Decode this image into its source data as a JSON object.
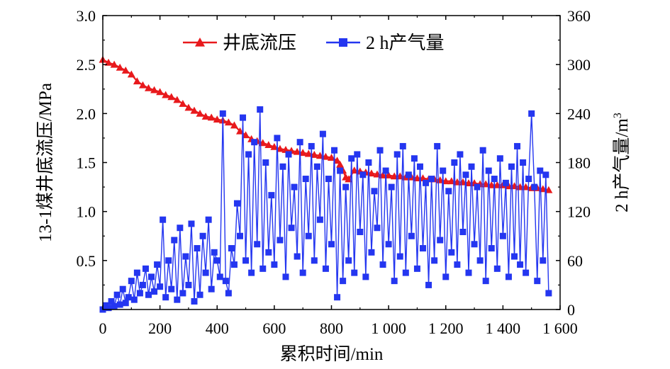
{
  "chart_data": {
    "type": "line",
    "xlabel": "累积时间/min",
    "ylabel_left": "13-1煤井底流压/MPa",
    "ylabel_right_prefix": "2 h产气量/m",
    "ylabel_right_sup": "3",
    "xlim": [
      0,
      1600
    ],
    "ylim_left": [
      0,
      3.0
    ],
    "ylim_right": [
      0,
      360
    ],
    "x_ticks": [
      0,
      200,
      400,
      600,
      800,
      1000,
      1200,
      1400,
      1600
    ],
    "x_tick_labels": [
      "0",
      "200",
      "400",
      "600",
      "800",
      "1 000",
      "1 200",
      "1 400",
      "1 600"
    ],
    "y_left_ticks": [
      0.5,
      1.0,
      1.5,
      2.0,
      2.5,
      3.0
    ],
    "y_left_tick_labels": [
      "0.5",
      "1.0",
      "1.5",
      "2.0",
      "2.5",
      "3.0"
    ],
    "y_right_ticks": [
      0,
      60,
      120,
      180,
      240,
      300,
      360
    ],
    "y_right_tick_labels": [
      "0",
      "60",
      "120",
      "180",
      "240",
      "300",
      "360"
    ],
    "legend": {
      "position": "top-center"
    },
    "series": [
      {
        "name": "井底流压",
        "axis": "left",
        "color": "#e8191c",
        "marker": "triangle",
        "x": [
          0,
          20,
          40,
          60,
          80,
          100,
          120,
          140,
          160,
          180,
          200,
          220,
          240,
          260,
          280,
          300,
          320,
          340,
          360,
          380,
          400,
          420,
          440,
          460,
          480,
          500,
          520,
          540,
          560,
          580,
          600,
          620,
          640,
          660,
          680,
          700,
          720,
          740,
          760,
          780,
          800,
          820,
          830,
          840,
          850,
          860,
          880,
          900,
          920,
          940,
          960,
          980,
          1000,
          1020,
          1040,
          1060,
          1080,
          1100,
          1120,
          1140,
          1160,
          1180,
          1200,
          1220,
          1240,
          1260,
          1280,
          1300,
          1320,
          1340,
          1360,
          1380,
          1400,
          1420,
          1440,
          1460,
          1480,
          1500,
          1520,
          1540,
          1560
        ],
        "y": [
          2.55,
          2.52,
          2.5,
          2.47,
          2.44,
          2.4,
          2.33,
          2.29,
          2.26,
          2.24,
          2.22,
          2.19,
          2.17,
          2.14,
          2.1,
          2.06,
          2.03,
          2.0,
          1.97,
          1.96,
          1.94,
          1.93,
          1.91,
          1.88,
          1.82,
          1.78,
          1.74,
          1.72,
          1.7,
          1.68,
          1.66,
          1.64,
          1.63,
          1.62,
          1.61,
          1.6,
          1.59,
          1.58,
          1.57,
          1.56,
          1.55,
          1.52,
          1.48,
          1.42,
          1.35,
          1.33,
          1.42,
          1.41,
          1.4,
          1.39,
          1.38,
          1.37,
          1.37,
          1.36,
          1.36,
          1.35,
          1.35,
          1.34,
          1.34,
          1.33,
          1.33,
          1.32,
          1.31,
          1.31,
          1.3,
          1.3,
          1.29,
          1.29,
          1.28,
          1.28,
          1.27,
          1.27,
          1.27,
          1.26,
          1.26,
          1.25,
          1.25,
          1.24,
          1.24,
          1.23,
          1.22
        ]
      },
      {
        "name": "2 h产气量",
        "axis": "right",
        "color": "#2436f0",
        "marker": "square",
        "x": [
          0,
          10,
          20,
          30,
          40,
          50,
          60,
          70,
          80,
          90,
          100,
          110,
          120,
          130,
          140,
          150,
          160,
          170,
          180,
          190,
          200,
          210,
          220,
          230,
          240,
          250,
          260,
          270,
          280,
          290,
          300,
          310,
          320,
          330,
          340,
          350,
          360,
          370,
          380,
          390,
          400,
          410,
          420,
          430,
          440,
          450,
          460,
          470,
          480,
          490,
          500,
          510,
          520,
          530,
          540,
          550,
          560,
          570,
          580,
          590,
          600,
          610,
          620,
          630,
          640,
          650,
          660,
          670,
          680,
          690,
          700,
          710,
          720,
          730,
          740,
          750,
          760,
          770,
          780,
          790,
          800,
          810,
          820,
          830,
          840,
          850,
          860,
          870,
          880,
          890,
          900,
          910,
          920,
          930,
          940,
          950,
          960,
          970,
          980,
          990,
          1000,
          1010,
          1020,
          1030,
          1040,
          1050,
          1060,
          1070,
          1080,
          1090,
          1100,
          1110,
          1120,
          1130,
          1140,
          1150,
          1160,
          1170,
          1180,
          1190,
          1200,
          1210,
          1220,
          1230,
          1240,
          1250,
          1260,
          1270,
          1280,
          1290,
          1300,
          1310,
          1320,
          1330,
          1340,
          1350,
          1360,
          1370,
          1380,
          1390,
          1400,
          1410,
          1420,
          1430,
          1440,
          1450,
          1460,
          1470,
          1480,
          1490,
          1500,
          1510,
          1520,
          1530,
          1540,
          1550,
          1560
        ],
        "y": [
          0,
          5,
          2,
          10,
          4,
          18,
          6,
          25,
          8,
          15,
          35,
          12,
          45,
          20,
          30,
          50,
          18,
          40,
          22,
          55,
          28,
          110,
          15,
          60,
          25,
          85,
          12,
          100,
          20,
          65,
          30,
          105,
          10,
          75,
          18,
          90,
          45,
          110,
          25,
          70,
          60,
          40,
          240,
          35,
          20,
          75,
          55,
          130,
          90,
          235,
          60,
          190,
          45,
          205,
          80,
          245,
          50,
          180,
          70,
          140,
          55,
          210,
          85,
          175,
          40,
          190,
          100,
          150,
          65,
          205,
          45,
          160,
          90,
          200,
          60,
          175,
          110,
          215,
          50,
          160,
          80,
          195,
          15,
          170,
          35,
          150,
          60,
          185,
          45,
          190,
          95,
          165,
          40,
          180,
          70,
          145,
          100,
          195,
          55,
          170,
          80,
          150,
          35,
          190,
          65,
          200,
          45,
          165,
          90,
          185,
          50,
          175,
          75,
          155,
          30,
          160,
          60,
          200,
          85,
          170,
          40,
          145,
          70,
          180,
          55,
          190,
          95,
          165,
          45,
          175,
          80,
          150,
          60,
          195,
          35,
          170,
          75,
          160,
          50,
          185,
          90,
          155,
          40,
          175,
          65,
          200,
          55,
          180,
          45,
          160,
          240,
          150,
          35,
          170,
          60,
          165,
          20
        ]
      }
    ]
  }
}
